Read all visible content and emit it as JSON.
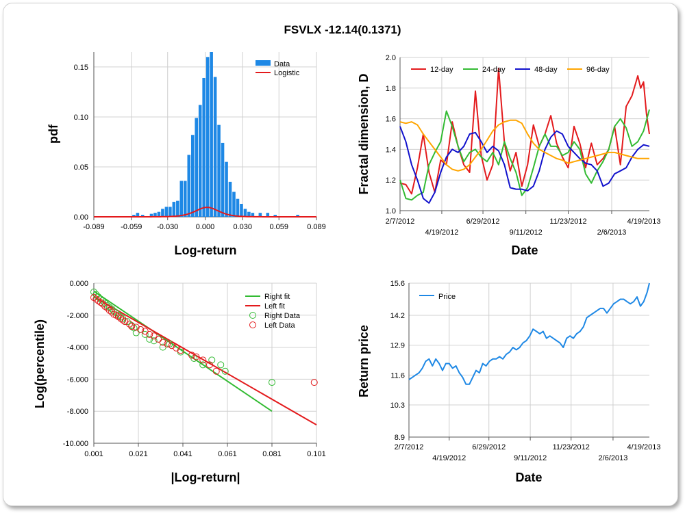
{
  "title": "FSVLX -12.14(0.1371)",
  "colors": {
    "blue": "#1e88e5",
    "red": "#e31a1c",
    "green": "#33bb33",
    "navy": "#1111cc",
    "orange": "#ffa500",
    "grid": "#d0d0d0"
  },
  "chart_data": [
    {
      "id": "pdf",
      "type": "bar",
      "xlabel": "Log-return",
      "ylabel": "pdf",
      "xlim": [
        -0.089,
        0.089
      ],
      "ylim": [
        0,
        0.165
      ],
      "xticks": [
        -0.089,
        -0.059,
        -0.03,
        0.0,
        0.03,
        0.059,
        0.089
      ],
      "xtick_labels": [
        "-0.089",
        "-0.059",
        "-0.030",
        "0.000",
        "0.030",
        "0.059",
        "0.089"
      ],
      "yticks": [
        0,
        0.05,
        0.1,
        0.15
      ],
      "ytick_labels": [
        "0.00",
        "0.05",
        "0.10",
        "0.15"
      ],
      "legend": [
        "Data",
        "Logistic"
      ],
      "legend_position": "top-right",
      "bars": {
        "name": "Data",
        "x": [
          -0.057,
          -0.054,
          -0.05,
          -0.043,
          -0.04,
          -0.037,
          -0.034,
          -0.031,
          -0.028,
          -0.025,
          -0.022,
          -0.019,
          -0.016,
          -0.013,
          -0.01,
          -0.007,
          -0.004,
          -0.001,
          0.002,
          0.005,
          0.008,
          0.011,
          0.014,
          0.017,
          0.02,
          0.023,
          0.026,
          0.029,
          0.032,
          0.035,
          0.038,
          0.044,
          0.05,
          0.056,
          0.074
        ],
        "values": [
          0.002,
          0.004,
          0.002,
          0.003,
          0.004,
          0.005,
          0.008,
          0.01,
          0.01,
          0.015,
          0.016,
          0.036,
          0.036,
          0.062,
          0.082,
          0.099,
          0.112,
          0.139,
          0.16,
          0.165,
          0.14,
          0.092,
          0.074,
          0.055,
          0.035,
          0.025,
          0.018,
          0.013,
          0.008,
          0.005,
          0.004,
          0.004,
          0.004,
          0.002,
          0.002
        ]
      },
      "curve": {
        "name": "Logistic",
        "mu": 0.0015,
        "s": 0.00625
      }
    },
    {
      "id": "fractal",
      "type": "line",
      "xlabel": "Date",
      "ylabel": "Fractal dimension, D",
      "xlim": [
        0,
        430
      ],
      "ylim": [
        1.0,
        2.0
      ],
      "yticks": [
        1.0,
        1.2,
        1.4,
        1.6,
        1.8,
        2.0
      ],
      "ytick_labels": [
        "1.0",
        "1.2",
        "1.4",
        "1.6",
        "1.8",
        "2.0"
      ],
      "xtick_labels_upper": [
        {
          "x": 0,
          "label": "2/7/2012"
        },
        {
          "x": 143,
          "label": "6/29/2012"
        },
        {
          "x": 290,
          "label": "11/23/2012"
        },
        {
          "x": 437,
          "label": "4/19/2013"
        }
      ],
      "xtick_labels_lower": [
        {
          "x": 72,
          "label": "4/19/2012"
        },
        {
          "x": 217,
          "label": "9/11/2012"
        },
        {
          "x": 365,
          "label": "2/6/2013"
        }
      ],
      "legend_position": "top",
      "series": [
        {
          "name": "12-day",
          "color": "#e31a1c",
          "x": [
            0,
            10,
            20,
            30,
            40,
            50,
            60,
            70,
            80,
            90,
            100,
            110,
            120,
            130,
            140,
            150,
            160,
            170,
            180,
            190,
            200,
            210,
            220,
            230,
            240,
            250,
            260,
            270,
            280,
            290,
            300,
            310,
            320,
            330,
            340,
            350,
            360,
            370,
            380,
            390,
            400,
            410,
            415,
            420,
            425,
            430
          ],
          "values": [
            1.18,
            1.17,
            1.11,
            1.28,
            1.5,
            1.25,
            1.12,
            1.33,
            1.3,
            1.58,
            1.42,
            1.3,
            1.25,
            1.78,
            1.36,
            1.2,
            1.3,
            1.93,
            1.44,
            1.26,
            1.38,
            1.16,
            1.3,
            1.56,
            1.42,
            1.5,
            1.62,
            1.44,
            1.35,
            1.28,
            1.55,
            1.44,
            1.28,
            1.44,
            1.3,
            1.34,
            1.4,
            1.55,
            1.3,
            1.68,
            1.75,
            1.88,
            1.8,
            1.84,
            1.63,
            1.5
          ]
        },
        {
          "name": "24-day",
          "color": "#33bb33",
          "x": [
            0,
            10,
            20,
            30,
            40,
            50,
            60,
            70,
            80,
            90,
            100,
            110,
            120,
            130,
            140,
            150,
            160,
            170,
            180,
            190,
            200,
            210,
            220,
            230,
            240,
            250,
            260,
            270,
            280,
            290,
            300,
            310,
            320,
            330,
            340,
            350,
            360,
            370,
            380,
            390,
            400,
            410,
            420,
            430
          ],
          "values": [
            1.2,
            1.08,
            1.07,
            1.1,
            1.12,
            1.3,
            1.38,
            1.45,
            1.65,
            1.55,
            1.42,
            1.32,
            1.38,
            1.4,
            1.35,
            1.32,
            1.38,
            1.3,
            1.45,
            1.34,
            1.25,
            1.1,
            1.15,
            1.28,
            1.42,
            1.5,
            1.42,
            1.42,
            1.36,
            1.38,
            1.45,
            1.4,
            1.24,
            1.18,
            1.26,
            1.32,
            1.4,
            1.55,
            1.6,
            1.54,
            1.42,
            1.45,
            1.52,
            1.66
          ]
        },
        {
          "name": "48-day",
          "color": "#1111cc",
          "x": [
            0,
            10,
            20,
            30,
            40,
            50,
            60,
            70,
            80,
            90,
            100,
            110,
            120,
            130,
            140,
            150,
            160,
            170,
            180,
            190,
            200,
            210,
            220,
            230,
            240,
            250,
            260,
            270,
            280,
            290,
            300,
            310,
            320,
            330,
            340,
            350,
            360,
            370,
            380,
            390,
            400,
            410,
            420,
            430
          ],
          "values": [
            1.55,
            1.45,
            1.3,
            1.2,
            1.08,
            1.05,
            1.12,
            1.25,
            1.35,
            1.4,
            1.38,
            1.42,
            1.5,
            1.51,
            1.45,
            1.38,
            1.42,
            1.39,
            1.3,
            1.15,
            1.14,
            1.14,
            1.13,
            1.16,
            1.26,
            1.4,
            1.48,
            1.52,
            1.5,
            1.42,
            1.38,
            1.34,
            1.31,
            1.3,
            1.26,
            1.16,
            1.18,
            1.24,
            1.26,
            1.28,
            1.35,
            1.4,
            1.43,
            1.42
          ]
        },
        {
          "name": "96-day",
          "color": "#ffa500",
          "x": [
            0,
            10,
            20,
            30,
            40,
            50,
            60,
            70,
            80,
            90,
            100,
            110,
            120,
            130,
            140,
            150,
            160,
            170,
            180,
            190,
            200,
            210,
            220,
            230,
            240,
            250,
            260,
            270,
            280,
            290,
            300,
            310,
            320,
            330,
            340,
            350,
            360,
            370,
            380,
            390,
            400,
            410,
            420,
            430
          ],
          "values": [
            1.58,
            1.57,
            1.58,
            1.56,
            1.5,
            1.45,
            1.4,
            1.35,
            1.3,
            1.27,
            1.26,
            1.27,
            1.3,
            1.35,
            1.4,
            1.46,
            1.52,
            1.56,
            1.58,
            1.59,
            1.59,
            1.57,
            1.5,
            1.44,
            1.4,
            1.38,
            1.36,
            1.34,
            1.33,
            1.31,
            1.32,
            1.33,
            1.34,
            1.35,
            1.36,
            1.37,
            1.38,
            1.38,
            1.37,
            1.36,
            1.35,
            1.34,
            1.34,
            1.34
          ]
        }
      ]
    },
    {
      "id": "tail",
      "type": "scatter",
      "xlabel": "|Log-return|",
      "ylabel": "Log(percentile)",
      "xlim": [
        0.001,
        0.101
      ],
      "ylim": [
        -10.0,
        0.0
      ],
      "xticks": [
        0.001,
        0.021,
        0.041,
        0.061,
        0.081,
        0.101
      ],
      "xtick_labels": [
        "0.001",
        "0.021",
        "0.041",
        "0.061",
        "0.081",
        "0.101"
      ],
      "yticks": [
        0,
        -2,
        -4,
        -6,
        -8,
        -10
      ],
      "ytick_labels": [
        "0.000",
        "-2.000",
        "-4.000",
        "-6.000",
        "-8.000",
        "-10.000"
      ],
      "legend_position": "top-right",
      "lines": [
        {
          "name": "Right fit",
          "color": "#33bb33",
          "x": [
            0.001,
            0.081
          ],
          "values": [
            -0.5,
            -8.0
          ]
        },
        {
          "name": "Left fit",
          "color": "#e31a1c",
          "x": [
            0.001,
            0.101
          ],
          "values": [
            -0.85,
            -8.85
          ]
        }
      ],
      "points": [
        {
          "name": "Right Data",
          "color": "#33bb33",
          "x": [
            0.001,
            0.002,
            0.003,
            0.004,
            0.005,
            0.006,
            0.007,
            0.008,
            0.009,
            0.01,
            0.011,
            0.012,
            0.013,
            0.014,
            0.016,
            0.018,
            0.019,
            0.02,
            0.022,
            0.024,
            0.026,
            0.028,
            0.03,
            0.032,
            0.035,
            0.04,
            0.046,
            0.05,
            0.054,
            0.058,
            0.06,
            0.081
          ],
          "values": [
            -0.55,
            -0.7,
            -0.85,
            -1.0,
            -1.1,
            -1.25,
            -1.4,
            -1.5,
            -1.6,
            -1.75,
            -1.85,
            -2.0,
            -2.1,
            -2.2,
            -2.4,
            -2.65,
            -2.8,
            -3.1,
            -2.9,
            -3.2,
            -3.5,
            -3.6,
            -3.5,
            -4.0,
            -3.8,
            -4.3,
            -4.7,
            -5.1,
            -4.8,
            -5.1,
            -5.5,
            -6.2
          ]
        },
        {
          "name": "Left Data",
          "color": "#e31a1c",
          "x": [
            0.001,
            0.002,
            0.003,
            0.004,
            0.005,
            0.006,
            0.007,
            0.008,
            0.009,
            0.01,
            0.011,
            0.012,
            0.013,
            0.014,
            0.015,
            0.017,
            0.018,
            0.02,
            0.022,
            0.024,
            0.026,
            0.028,
            0.03,
            0.032,
            0.034,
            0.036,
            0.038,
            0.04,
            0.045,
            0.047,
            0.05,
            0.053,
            0.056,
            0.1
          ],
          "values": [
            -0.9,
            -1.0,
            -1.1,
            -1.2,
            -1.3,
            -1.45,
            -1.55,
            -1.7,
            -1.8,
            -1.95,
            -2.0,
            -2.1,
            -2.2,
            -2.3,
            -2.4,
            -2.55,
            -2.7,
            -2.75,
            -2.9,
            -3.0,
            -3.2,
            -3.3,
            -3.5,
            -3.7,
            -3.8,
            -3.9,
            -4.05,
            -4.2,
            -4.5,
            -4.6,
            -4.8,
            -5.1,
            -5.5,
            -6.2
          ]
        }
      ]
    },
    {
      "id": "price",
      "type": "line",
      "xlabel": "Date",
      "ylabel": "Return price",
      "xlim": [
        0,
        430
      ],
      "ylim": [
        8.9,
        15.6
      ],
      "yticks": [
        8.9,
        10.3,
        11.6,
        12.9,
        14.2,
        15.6
      ],
      "ytick_labels": [
        "8.9",
        "10.3",
        "11.6",
        "12.9",
        "14.2",
        "15.6"
      ],
      "xtick_labels_upper": [
        {
          "x": 0,
          "label": "2/7/2012"
        },
        {
          "x": 143,
          "label": "6/29/2012"
        },
        {
          "x": 290,
          "label": "11/23/2012"
        },
        {
          "x": 437,
          "label": "4/19/2013"
        }
      ],
      "xtick_labels_lower": [
        {
          "x": 72,
          "label": "4/19/2012"
        },
        {
          "x": 217,
          "label": "9/11/2012"
        },
        {
          "x": 365,
          "label": "2/6/2013"
        }
      ],
      "legend_position": "top-left",
      "series": [
        {
          "name": "Price",
          "color": "#1e88e5",
          "x": [
            0,
            6,
            12,
            18,
            24,
            30,
            36,
            42,
            48,
            54,
            60,
            66,
            72,
            78,
            84,
            90,
            96,
            102,
            108,
            114,
            120,
            126,
            132,
            138,
            144,
            150,
            156,
            162,
            168,
            174,
            180,
            186,
            192,
            198,
            204,
            210,
            216,
            222,
            228,
            234,
            240,
            246,
            252,
            258,
            264,
            270,
            276,
            282,
            288,
            294,
            300,
            306,
            312,
            318,
            324,
            330,
            336,
            342,
            348,
            354,
            360,
            366,
            372,
            378,
            384,
            390,
            396,
            402,
            408,
            414,
            420,
            426,
            430
          ],
          "values": [
            11.4,
            11.5,
            11.6,
            11.7,
            11.9,
            12.2,
            12.3,
            12.0,
            12.3,
            12.1,
            11.8,
            12.1,
            12.1,
            11.9,
            12.0,
            11.7,
            11.5,
            11.2,
            11.2,
            11.5,
            11.8,
            11.7,
            12.1,
            12.0,
            12.2,
            12.3,
            12.3,
            12.4,
            12.3,
            12.5,
            12.6,
            12.8,
            12.7,
            12.8,
            13.0,
            13.1,
            13.3,
            13.6,
            13.5,
            13.4,
            13.5,
            13.2,
            13.3,
            13.2,
            13.1,
            13.0,
            12.8,
            13.2,
            13.3,
            13.2,
            13.4,
            13.5,
            13.7,
            14.1,
            14.2,
            14.3,
            14.4,
            14.5,
            14.5,
            14.3,
            14.5,
            14.7,
            14.8,
            14.9,
            14.9,
            14.8,
            14.7,
            14.8,
            15.0,
            14.6,
            14.8,
            15.2,
            15.6
          ]
        }
      ]
    }
  ]
}
